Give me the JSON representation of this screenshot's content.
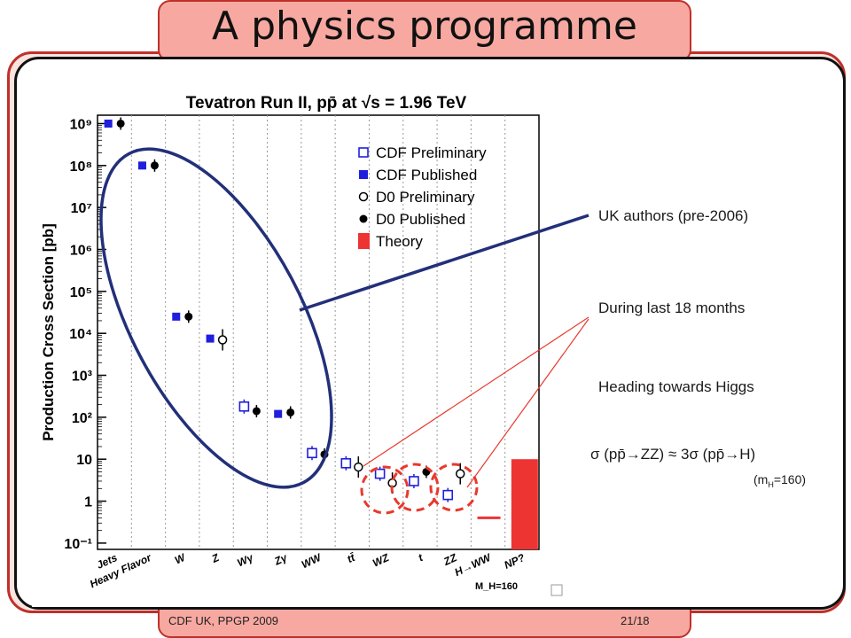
{
  "slide": {
    "title": "A physics programme",
    "footer_left": "CDF UK, PPGP 2009",
    "footer_right": "21/18"
  },
  "annotations": {
    "uk_authors": "UK authors (pre-2006)",
    "last_18_months": "During last 18 months",
    "heading_higgs": "Heading towards Higgs",
    "sigma_relation": "σ (pp̄→ZZ) ≈ 3σ (pp̄→H)",
    "mass_note": "(m",
    "mass_sub": "H",
    "mass_val": "=160)"
  },
  "colors": {
    "accent": "#f7a9a1",
    "border_red": "#c0302a",
    "cdf_blue": "#1f1fdd",
    "theory_red": "#ee3333",
    "ellipse_navy": "#22307a"
  },
  "chart_data": {
    "type": "scatter",
    "title": "Tevatron Run II, pp̄ at √s = 1.96 TeV",
    "ylabel": "Production Cross Section [pb]",
    "yscale": "log",
    "ylim": [
      0.1,
      1000000000
    ],
    "yticks": [
      "10⁹",
      "10⁸",
      "10⁷",
      "10⁶",
      "10⁵",
      "10⁴",
      "10³",
      "10²",
      "10",
      "1",
      "10⁻¹"
    ],
    "categories": [
      "Jets",
      "Heavy Flavor",
      "W",
      "Z",
      "Wγ",
      "Zγ",
      "WW",
      "tt̄",
      "WZ",
      "t",
      "ZZ",
      "H→WW",
      "NP?"
    ],
    "mass_label": "M_H=160",
    "legend": {
      "placement": "top-right",
      "entries": [
        "CDF Preliminary",
        "CDF Published",
        "D0 Preliminary",
        "D0 Published",
        "Theory"
      ]
    },
    "series": [
      {
        "name": "CDF Published",
        "points": [
          [
            1,
            1000000000
          ],
          [
            2,
            100000000
          ],
          [
            3,
            25000
          ],
          [
            4,
            7500
          ],
          [
            6,
            120
          ]
        ]
      },
      {
        "name": "D0 Published",
        "points": [
          [
            1,
            1000000000
          ],
          [
            2,
            100000000
          ],
          [
            3,
            25000
          ],
          [
            5,
            140
          ],
          [
            6,
            130
          ],
          [
            7,
            13
          ],
          [
            10,
            5
          ]
        ]
      },
      {
        "name": "CDF Preliminary",
        "points": [
          [
            5,
            180
          ],
          [
            7,
            14
          ],
          [
            8,
            8
          ],
          [
            9,
            4.5
          ],
          [
            10,
            3
          ],
          [
            11,
            1.4
          ]
        ]
      },
      {
        "name": "D0 Preliminary",
        "points": [
          [
            4,
            7000
          ],
          [
            8,
            6.5
          ],
          [
            9,
            2.7
          ],
          [
            11,
            4.5
          ]
        ]
      },
      {
        "name": "Theory",
        "points": [
          [
            12,
            0.4
          ],
          [
            13,
            10
          ]
        ]
      }
    ]
  }
}
